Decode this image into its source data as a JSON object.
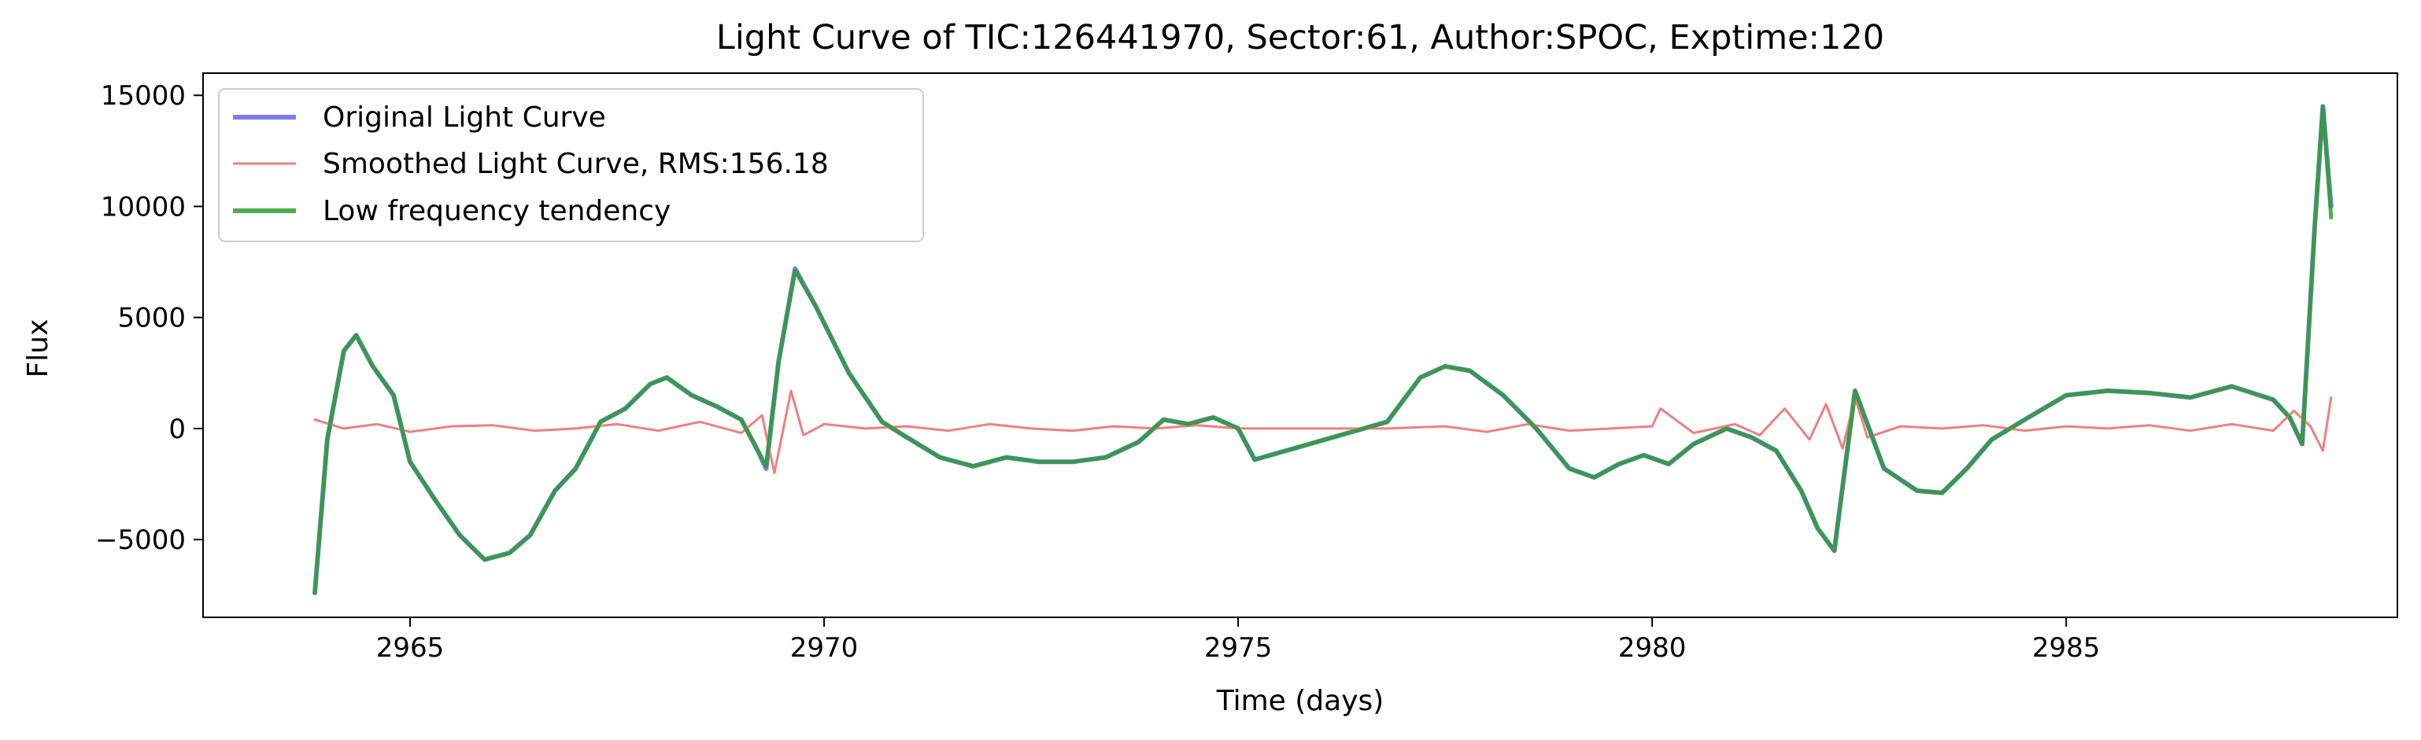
{
  "chart_data": {
    "type": "line",
    "title": "Light Curve of TIC:126441970, Sector:61, Author:SPOC, Exptime:120",
    "xlabel": "Time (days)",
    "ylabel": "Flux",
    "xlim": [
      2962.5,
      2989.0
    ],
    "ylim": [
      -8500,
      16000
    ],
    "x_ticks": [
      2965,
      2970,
      2975,
      2980,
      2985
    ],
    "y_ticks": [
      -5000,
      0,
      5000,
      10000,
      15000
    ],
    "x_tick_labels": [
      "2965",
      "2970",
      "2975",
      "2980",
      "2985"
    ],
    "y_tick_labels": [
      "−5000",
      "0",
      "5000",
      "10000",
      "15000"
    ],
    "grid": false,
    "legend_position": "top-left",
    "series": [
      {
        "name": "Original Light Curve",
        "color": "#7b7bf2",
        "x": [
          2963.85,
          2964.0,
          2964.2,
          2964.35,
          2964.55,
          2964.8,
          2965.0,
          2965.3,
          2965.6,
          2965.9,
          2966.2,
          2966.45,
          2966.75,
          2967.0,
          2967.3,
          2967.6,
          2967.9,
          2968.1,
          2968.4,
          2968.7,
          2969.0,
          2969.2,
          2969.3,
          2969.45,
          2969.65,
          2969.9,
          2970.3,
          2970.7,
          2971.0,
          2971.4,
          2971.8,
          2972.2,
          2972.6,
          2973.0,
          2973.4,
          2973.8,
          2974.1,
          2974.4,
          2974.7,
          2975.0,
          2975.2,
          2976.8,
          2977.2,
          2977.5,
          2977.8,
          2978.2,
          2978.6,
          2979.0,
          2979.3,
          2979.6,
          2979.9,
          2980.2,
          2980.5,
          2980.9,
          2981.2,
          2981.5,
          2981.8,
          2982.0,
          2982.2,
          2982.45,
          2982.8,
          2983.2,
          2983.5,
          2983.8,
          2984.1,
          2984.5,
          2985.0,
          2985.5,
          2986.0,
          2986.5,
          2987.0,
          2987.5,
          2987.7,
          2987.85,
          2988.0,
          2988.1,
          2988.2
        ],
        "y": [
          -7400,
          -500,
          3500,
          4200,
          2800,
          1500,
          -1500,
          -3200,
          -4800,
          -5900,
          -5600,
          -4800,
          -2800,
          -1800,
          300,
          900,
          2000,
          2300,
          1500,
          1000,
          400,
          -1000,
          -1800,
          3000,
          7200,
          5500,
          2500,
          300,
          -400,
          -1300,
          -1700,
          -1300,
          -1500,
          -1500,
          -1300,
          -600,
          400,
          200,
          500,
          0,
          -1400,
          300,
          2300,
          2800,
          2600,
          1500,
          0,
          -1800,
          -2200,
          -1600,
          -1200,
          -1600,
          -700,
          0,
          -400,
          -1000,
          -2800,
          -4500,
          -5500,
          1700,
          -1800,
          -2800,
          -2900,
          -1800,
          -500,
          400,
          1500,
          1700,
          1600,
          1400,
          1900,
          1300,
          500,
          -700,
          9000,
          14500,
          10000
        ]
      },
      {
        "name": "Smoothed Light Curve, RMS:156.18",
        "color": "#f07f7f",
        "x": [
          2963.85,
          2964.2,
          2964.6,
          2965.0,
          2965.5,
          2966.0,
          2966.5,
          2967.0,
          2967.5,
          2968.0,
          2968.5,
          2969.0,
          2969.25,
          2969.4,
          2969.6,
          2969.75,
          2970.0,
          2970.5,
          2971.0,
          2971.5,
          2972.0,
          2972.5,
          2973.0,
          2973.5,
          2974.0,
          2974.5,
          2975.0,
          2975.2,
          2976.8,
          2977.5,
          2978.0,
          2978.5,
          2979.0,
          2979.5,
          2980.0,
          2980.1,
          2980.5,
          2981.0,
          2981.3,
          2981.6,
          2981.9,
          2982.1,
          2982.3,
          2982.45,
          2982.6,
          2983.0,
          2983.5,
          2984.0,
          2984.5,
          2985.0,
          2985.5,
          2986.0,
          2986.5,
          2987.0,
          2987.5,
          2987.75,
          2987.95,
          2988.1,
          2988.2
        ],
        "y": [
          400,
          0,
          200,
          -150,
          100,
          150,
          -100,
          0,
          200,
          -100,
          300,
          -200,
          600,
          -2000,
          1700,
          -300,
          200,
          0,
          100,
          -100,
          200,
          0,
          -100,
          100,
          0,
          150,
          0,
          0,
          0,
          100,
          -150,
          200,
          -100,
          0,
          100,
          900,
          -200,
          200,
          -300,
          900,
          -500,
          1100,
          -900,
          1400,
          -400,
          100,
          0,
          150,
          -100,
          100,
          0,
          150,
          -100,
          200,
          -100,
          800,
          100,
          -1000,
          1400
        ]
      },
      {
        "name": "Low frequency tendency",
        "color": "#2ca02c",
        "x": [
          2963.85,
          2964.0,
          2964.2,
          2964.35,
          2964.55,
          2964.8,
          2965.0,
          2965.3,
          2965.6,
          2965.9,
          2966.2,
          2966.45,
          2966.75,
          2967.0,
          2967.3,
          2967.6,
          2967.9,
          2968.1,
          2968.4,
          2968.7,
          2969.0,
          2969.2,
          2969.3,
          2969.45,
          2969.65,
          2969.9,
          2970.3,
          2970.7,
          2971.0,
          2971.4,
          2971.8,
          2972.2,
          2972.6,
          2973.0,
          2973.4,
          2973.8,
          2974.1,
          2974.4,
          2974.7,
          2975.0,
          2975.2,
          2976.8,
          2977.2,
          2977.5,
          2977.8,
          2978.2,
          2978.6,
          2979.0,
          2979.3,
          2979.6,
          2979.9,
          2980.2,
          2980.5,
          2980.9,
          2981.2,
          2981.5,
          2981.8,
          2982.0,
          2982.2,
          2982.45,
          2982.8,
          2983.2,
          2983.5,
          2983.8,
          2984.1,
          2984.5,
          2985.0,
          2985.5,
          2986.0,
          2986.5,
          2987.0,
          2987.5,
          2987.7,
          2987.85,
          2988.0,
          2988.1,
          2988.2
        ],
        "y": [
          -7400,
          -500,
          3500,
          4200,
          2800,
          1500,
          -1500,
          -3200,
          -4800,
          -5900,
          -5600,
          -4800,
          -2800,
          -1800,
          300,
          900,
          2000,
          2300,
          1500,
          1000,
          400,
          -1000,
          -1700,
          3000,
          7100,
          5500,
          2500,
          300,
          -400,
          -1300,
          -1700,
          -1300,
          -1500,
          -1500,
          -1300,
          -600,
          400,
          200,
          500,
          0,
          -1400,
          300,
          2300,
          2800,
          2600,
          1500,
          0,
          -1800,
          -2200,
          -1600,
          -1200,
          -1600,
          -700,
          0,
          -400,
          -1000,
          -2800,
          -4500,
          -5500,
          1700,
          -1800,
          -2800,
          -2900,
          -1800,
          -500,
          400,
          1500,
          1700,
          1600,
          1400,
          1900,
          1300,
          500,
          -700,
          9000,
          14500,
          9500
        ]
      }
    ]
  }
}
